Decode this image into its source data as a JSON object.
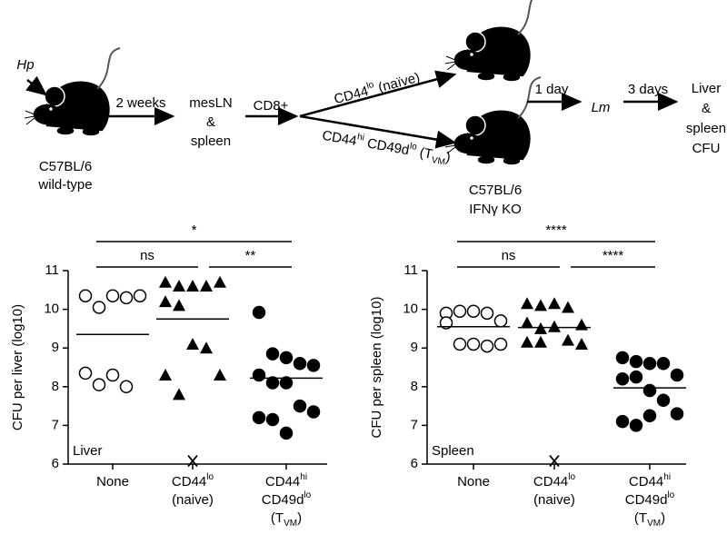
{
  "diagram": {
    "labels": [
      [
        {
          "t": "Hp"
        }
      ],
      [
        {
          "t": "C57BL/6"
        }
      ],
      [
        {
          "t": "wild-type"
        }
      ],
      [
        {
          "t": "2 weeks"
        }
      ],
      [
        {
          "t": "mesLN"
        }
      ],
      [
        {
          "t": "&"
        }
      ],
      [
        {
          "t": "spleen"
        }
      ],
      [
        {
          "t": "CD8+"
        }
      ],
      [
        {
          "t": "CD44"
        },
        {
          "sup": "lo"
        },
        {
          "t": " (naïve)"
        }
      ],
      [
        {
          "t": "CD44"
        },
        {
          "sup": "hi"
        },
        {
          "t": " CD49d"
        },
        {
          "sup": "lo"
        },
        {
          "t": " (T"
        },
        {
          "sub": "VM"
        },
        {
          "t": ")"
        }
      ],
      [
        {
          "t": "C57BL/6"
        }
      ],
      [
        {
          "t": "IFNγ KO"
        }
      ],
      [
        {
          "t": "1 day"
        }
      ],
      [
        {
          "t": "Lm"
        }
      ],
      [
        {
          "t": "3 days"
        }
      ],
      [
        {
          "t": "Liver"
        }
      ],
      [
        {
          "t": "&"
        }
      ],
      [
        {
          "t": "spleen"
        }
      ],
      [
        {
          "t": "CFU"
        }
      ]
    ]
  },
  "chart_data": [
    {
      "type": "strip",
      "panel_label": "Liver",
      "ylabel": "CFU per liver (log10)",
      "ylim": [
        6,
        11
      ],
      "yticks": [
        6,
        7,
        8,
        9,
        10,
        11
      ],
      "categories": [
        [
          [
            {
              "t": "None"
            }
          ]
        ],
        [
          [
            {
              "t": "CD44"
            },
            {
              "sup": "lo"
            }
          ],
          [
            {
              "t": "(naive)"
            }
          ]
        ],
        [
          [
            {
              "t": "CD44"
            },
            {
              "sup": "hi"
            }
          ],
          [
            {
              "t": "CD49d"
            },
            {
              "sup": "lo"
            }
          ],
          [
            {
              "t": "(T"
            },
            {
              "sub": "VM"
            },
            {
              "t": ")"
            }
          ]
        ]
      ],
      "series": [
        {
          "marker": "open-circle",
          "color": "#000000",
          "values": [
            10.35,
            10.05,
            10.35,
            10.3,
            10.35,
            8.35,
            8.05,
            8.3,
            8.0
          ],
          "mean": 9.35
        },
        {
          "marker": "triangle",
          "color": "#000000",
          "values": [
            10.7,
            10.6,
            10.6,
            10.6,
            10.7,
            10.2,
            10.1,
            9.1,
            9.0,
            8.3,
            8.3,
            7.8
          ],
          "mean": 9.75,
          "dropouts": [
            6.08
          ]
        },
        {
          "marker": "circle",
          "color": "#000000",
          "values": [
            9.92,
            8.85,
            8.75,
            8.6,
            8.55,
            8.3,
            8.1,
            8.1,
            7.5,
            7.35,
            7.2,
            7.15,
            6.8
          ],
          "mean": 8.22
        }
      ],
      "significance": [
        {
          "label": "ns",
          "pair": [
            0,
            1
          ],
          "level": 1
        },
        {
          "label": "**",
          "pair": [
            1,
            2
          ],
          "level": 1
        },
        {
          "label": "*",
          "pair": [
            0,
            2
          ],
          "level": 2
        }
      ]
    },
    {
      "type": "strip",
      "panel_label": "Spleen",
      "ylabel": "CFU per spleen (log10)",
      "ylim": [
        6,
        11
      ],
      "yticks": [
        6,
        7,
        8,
        9,
        10,
        11
      ],
      "categories": [
        [
          [
            {
              "t": "None"
            }
          ]
        ],
        [
          [
            {
              "t": "CD44"
            },
            {
              "sup": "lo"
            }
          ],
          [
            {
              "t": "(naive)"
            }
          ]
        ],
        [
          [
            {
              "t": "CD44"
            },
            {
              "sup": "hi"
            }
          ],
          [
            {
              "t": "CD49d"
            },
            {
              "sup": "lo"
            }
          ],
          [
            {
              "t": "(T"
            },
            {
              "sub": "VM"
            },
            {
              "t": ")"
            }
          ]
        ]
      ],
      "series": [
        {
          "marker": "open-circle",
          "color": "#000000",
          "values": [
            9.9,
            9.95,
            9.95,
            9.9,
            9.7,
            9.65,
            9.1,
            9.1,
            9.05,
            9.1
          ],
          "mean": 9.55
        },
        {
          "marker": "triangle",
          "color": "#000000",
          "values": [
            10.15,
            10.1,
            10.15,
            10.05,
            9.6,
            9.65,
            9.5,
            9.55,
            9.2,
            9.1,
            9.15,
            9.15
          ],
          "mean": 9.53,
          "dropouts": [
            6.08
          ]
        },
        {
          "marker": "circle",
          "color": "#000000",
          "values": [
            8.75,
            8.65,
            8.6,
            8.6,
            8.3,
            8.2,
            8.25,
            7.9,
            7.65,
            7.3,
            7.1,
            7.0,
            7.25
          ],
          "mean": 7.97
        }
      ],
      "significance": [
        {
          "label": "ns",
          "pair": [
            0,
            1
          ],
          "level": 1
        },
        {
          "label": "****",
          "pair": [
            1,
            2
          ],
          "level": 1
        },
        {
          "label": "****",
          "pair": [
            0,
            2
          ],
          "level": 2
        }
      ]
    }
  ]
}
